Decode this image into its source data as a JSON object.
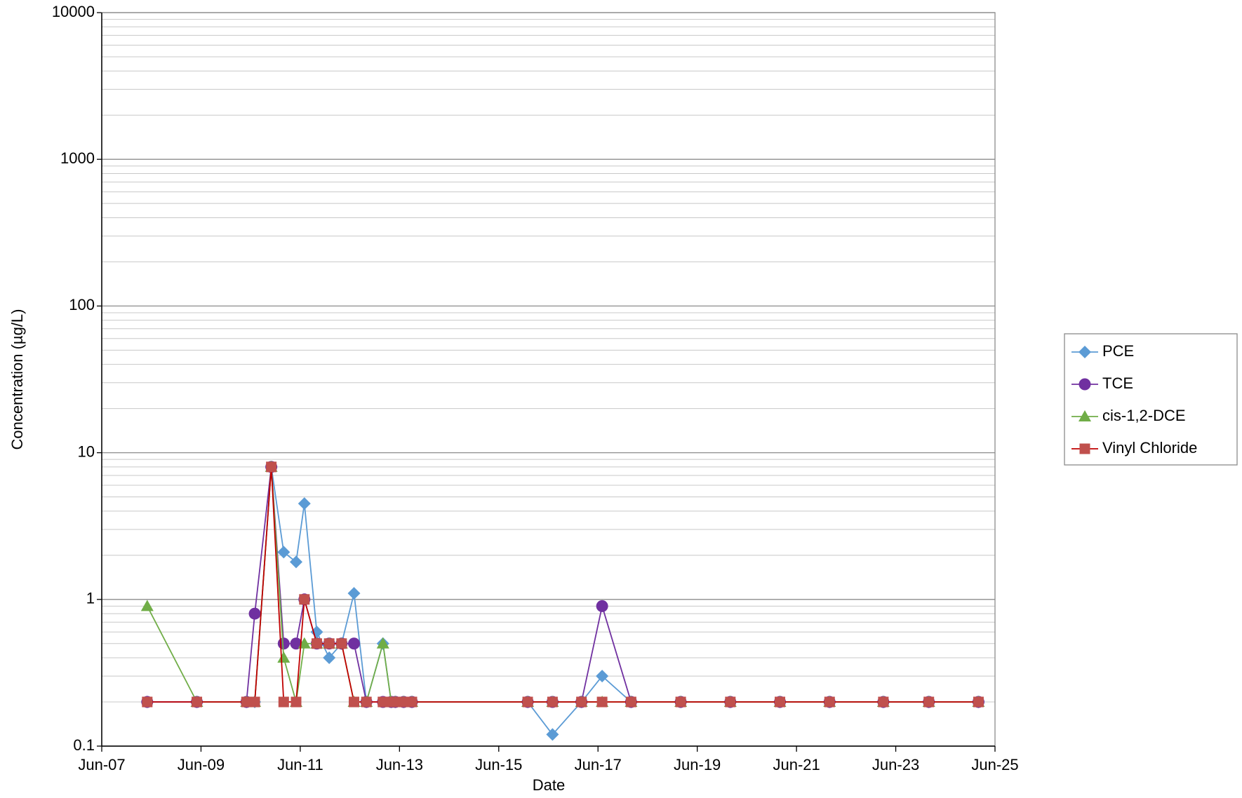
{
  "chart_data": {
    "type": "line",
    "xlabel": "Date",
    "ylabel": "Concentration (µg/L)",
    "x": [
      "2008-05",
      "2009-05",
      "2010-05",
      "2010-07",
      "2010-11",
      "2011-02",
      "2011-05",
      "2011-07",
      "2011-10",
      "2012-01",
      "2012-04",
      "2012-07",
      "2012-10",
      "2013-02",
      "2013-04",
      "2013-05",
      "2013-07",
      "2013-09",
      "2016-01",
      "2016-07",
      "2017-02",
      "2017-07",
      "2018-02",
      "2019-02",
      "2020-02",
      "2021-02",
      "2022-02",
      "2023-03",
      "2024-02",
      "2025-02"
    ],
    "series": [
      {
        "name": "PCE",
        "color": "#5b9bd5",
        "marker": "diamond",
        "values": [
          0.2,
          0.2,
          0.2,
          0.2,
          8,
          2.1,
          1.8,
          4.5,
          0.6,
          0.4,
          0.5,
          1.1,
          0.2,
          0.5,
          0.2,
          0.2,
          0.2,
          0.2,
          0.2,
          0.12,
          0.2,
          0.3,
          0.2,
          0.2,
          0.2,
          0.2,
          0.2,
          0.2,
          0.2,
          0.2
        ]
      },
      {
        "name": "TCE",
        "color": "#7030a0",
        "marker": "circle",
        "values": [
          0.2,
          0.2,
          0.2,
          0.8,
          8,
          0.5,
          0.5,
          1,
          0.5,
          0.5,
          0.5,
          0.5,
          0.2,
          0.2,
          0.2,
          0.2,
          0.2,
          0.2,
          0.2,
          0.2,
          0.2,
          0.9,
          0.2,
          0.2,
          0.2,
          0.2,
          0.2,
          0.2,
          0.2,
          0.2
        ]
      },
      {
        "name": "cis-1,2-DCE",
        "color": "#70ad47",
        "marker": "triangle",
        "values": [
          0.9,
          0.2,
          0.2,
          0.2,
          8,
          0.4,
          0.2,
          0.5,
          0.5,
          0.5,
          0.5,
          0.2,
          0.2,
          0.5,
          0.2,
          0.2,
          0.2,
          0.2,
          0.2,
          0.2,
          0.2,
          0.2,
          0.2,
          0.2,
          0.2,
          0.2,
          0.2,
          0.2,
          0.2,
          0.2
        ]
      },
      {
        "name": "Vinyl Chloride",
        "color": "#c00000",
        "marker": "square",
        "values": [
          0.2,
          0.2,
          0.2,
          0.2,
          8,
          0.2,
          0.2,
          1,
          0.5,
          0.5,
          0.5,
          0.2,
          0.2,
          0.2,
          0.2,
          0.2,
          0.2,
          0.2,
          0.2,
          0.2,
          0.2,
          0.2,
          0.2,
          0.2,
          0.2,
          0.2,
          0.2,
          0.2,
          0.2,
          0.2
        ]
      }
    ],
    "xlim": [
      "2007-06",
      "2025-06"
    ],
    "xticks": [
      {
        "value": "2007-06",
        "label": "Jun-07"
      },
      {
        "value": "2009-06",
        "label": "Jun-09"
      },
      {
        "value": "2011-06",
        "label": "Jun-11"
      },
      {
        "value": "2013-06",
        "label": "Jun-13"
      },
      {
        "value": "2015-06",
        "label": "Jun-15"
      },
      {
        "value": "2017-06",
        "label": "Jun-17"
      },
      {
        "value": "2019-06",
        "label": "Jun-19"
      },
      {
        "value": "2021-06",
        "label": "Jun-21"
      },
      {
        "value": "2023-06",
        "label": "Jun-23"
      },
      {
        "value": "2025-06",
        "label": "Jun-25"
      }
    ],
    "ylim": [
      0.1,
      10000
    ],
    "yticks": [
      0.1,
      1,
      10,
      100,
      1000,
      10000
    ],
    "ylog": true,
    "grid": true,
    "legend": "right"
  }
}
